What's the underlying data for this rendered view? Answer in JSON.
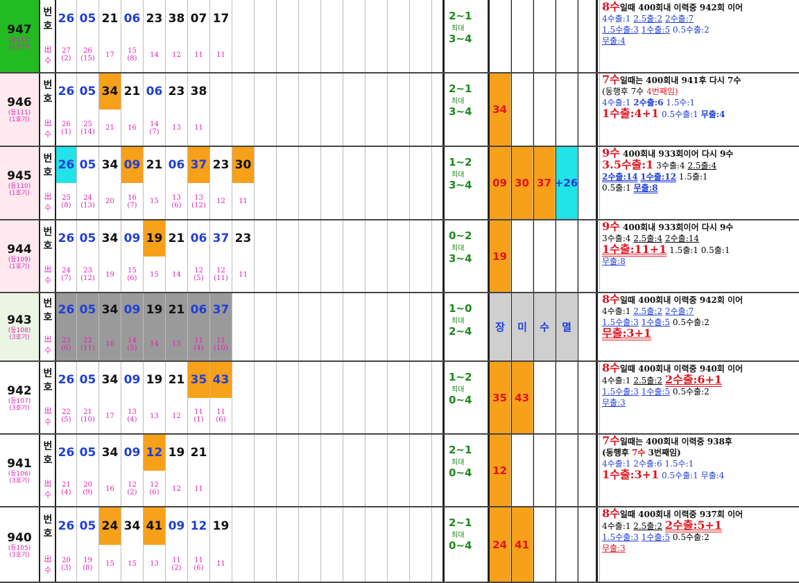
{
  "labels": {
    "num_top": "번",
    "num_bot": "호",
    "cnt_top": "出",
    "cnt_bot": "수",
    "max": "최대"
  },
  "rows": [
    {
      "round": "947",
      "sub1": "(등112)",
      "sub2": "(1호기)",
      "bg": "#22bb22",
      "numbers": [
        {
          "n": "26",
          "c": "blue"
        },
        {
          "n": "05",
          "c": "blue"
        },
        {
          "n": "21",
          "c": ""
        },
        {
          "n": "06",
          "c": "blue"
        },
        {
          "n": "23",
          "c": ""
        },
        {
          "n": "38",
          "c": ""
        },
        {
          "n": "07",
          "c": ""
        },
        {
          "n": "17",
          "c": ""
        }
      ],
      "counts": [
        "27\n(2)",
        "26\n(15)",
        "17",
        "15\n(8)",
        "14",
        "12",
        "11",
        "11"
      ],
      "range1": "2~1",
      "range2": "3~4",
      "extras": [],
      "notes": [
        [
          {
            "t": "8수",
            "cls": "hred"
          },
          {
            "t": "일때 400회내 이력중 942회 이어",
            "cls": "bk"
          }
        ],
        [
          {
            "t": "4수출:1  ",
            "cls": "blue"
          },
          {
            "t": "2.5출:2",
            "cls": "blue u"
          },
          {
            "t": "  "
          },
          {
            "t": "2수출:7",
            "cls": "blue u"
          }
        ],
        [
          {
            "t": "1.5수출:3",
            "cls": "blue u"
          },
          {
            "t": "  "
          },
          {
            "t": "1수출:5",
            "cls": "blue u"
          },
          {
            "t": "  0.5수출:2",
            "cls": "blue"
          }
        ],
        [
          {
            "t": "무출:4",
            "cls": "blue u"
          }
        ]
      ]
    },
    {
      "round": "946",
      "sub1": "(등111)",
      "sub2": "(1호기)",
      "bg": "#fde9ef",
      "numbers": [
        {
          "n": "26",
          "c": "blue"
        },
        {
          "n": "05",
          "c": "blue"
        },
        {
          "n": "34",
          "c": "orange"
        },
        {
          "n": "21",
          "c": ""
        },
        {
          "n": "06",
          "c": "blue"
        },
        {
          "n": "23",
          "c": ""
        },
        {
          "n": "38",
          "c": ""
        }
      ],
      "counts": [
        "26\n(1)",
        "25\n(14)",
        "21",
        "16",
        "14\n(7)",
        "13",
        "11"
      ],
      "range1": "2~1",
      "range2": "3~4",
      "extras": [
        {
          "n": "34"
        }
      ],
      "notes": [
        [
          {
            "t": "7수",
            "cls": "hred"
          },
          {
            "t": "일때는 400회내 941후 다시 7수",
            "cls": "bk"
          }
        ],
        [
          {
            "t": "        (동행후 7수 "
          },
          {
            "t": "4번째임)",
            "cls": "red"
          }
        ],
        [
          {
            "t": "4수출:1  ",
            "cls": "blue"
          },
          {
            "t": "2수출:6",
            "cls": "blue bk"
          },
          {
            "t": "  1.5수:1",
            "cls": "blue"
          }
        ],
        [
          {
            "t": "1수출:4+1",
            "cls": "bigred"
          },
          {
            "t": "  0.5수출:1  ",
            "cls": "blue"
          },
          {
            "t": "무출:4",
            "cls": "blue bk"
          }
        ]
      ]
    },
    {
      "round": "945",
      "sub1": "(등110)",
      "sub2": "(1호기)",
      "bg": "#fde9ef",
      "numbers": [
        {
          "n": "26",
          "c": "blue cyan"
        },
        {
          "n": "05",
          "c": "blue"
        },
        {
          "n": "34",
          "c": ""
        },
        {
          "n": "09",
          "c": "blue orange"
        },
        {
          "n": "21",
          "c": ""
        },
        {
          "n": "06",
          "c": "blue"
        },
        {
          "n": "37",
          "c": "blue orange"
        },
        {
          "n": "23",
          "c": ""
        },
        {
          "n": "30",
          "c": "orange"
        }
      ],
      "counts": [
        "25\n(8)",
        "24\n(13)",
        "20",
        "16\n(7)",
        "15",
        "13\n(6)",
        "13\n(12)",
        "12",
        "11"
      ],
      "range1": "1~2",
      "range2": "3~4",
      "extras": [
        {
          "n": "09"
        },
        {
          "n": "30"
        },
        {
          "n": "37"
        },
        {
          "n": "+26",
          "c": "cyan"
        }
      ],
      "notes": [
        [
          {
            "t": "9수",
            "cls": "hred"
          },
          {
            "t": " 400회내 933회이어 다시 9수",
            "cls": "bk"
          }
        ],
        [
          {
            "t": "3.5수출:1",
            "cls": "bigred"
          },
          {
            "t": "  3수출:4  "
          },
          {
            "t": "2.5출:4",
            "cls": "u"
          }
        ],
        [
          {
            "t": "2수출:14",
            "cls": "blue uu bk"
          },
          {
            "t": "  "
          },
          {
            "t": "1수출:12",
            "cls": "blue uu bk"
          },
          {
            "t": "  1.5출:1"
          }
        ],
        [
          {
            "t": " 0.5출:1  "
          },
          {
            "t": "무출:8",
            "cls": "blue uu bk"
          }
        ]
      ]
    },
    {
      "round": "944",
      "sub1": "(등109)",
      "sub2": "(1호기)",
      "bg": "#fde9ef",
      "numbers": [
        {
          "n": "26",
          "c": "blue"
        },
        {
          "n": "05",
          "c": "blue"
        },
        {
          "n": "34",
          "c": ""
        },
        {
          "n": "09",
          "c": "blue"
        },
        {
          "n": "19",
          "c": "orange"
        },
        {
          "n": "21",
          "c": ""
        },
        {
          "n": "06",
          "c": "blue"
        },
        {
          "n": "37",
          "c": "blue"
        },
        {
          "n": "23",
          "c": ""
        }
      ],
      "counts": [
        "24\n(7)",
        "23\n(12)",
        "19",
        "15\n(6)",
        "15",
        "14",
        "12\n(5)",
        "12\n(11)",
        "11"
      ],
      "range1": "0~2",
      "range2": "3~4",
      "extras": [
        {
          "n": "19"
        }
      ],
      "notes": [
        [
          {
            "t": "9수",
            "cls": "hred"
          },
          {
            "t": " 400회내 933회이어 다시 9수",
            "cls": "bk"
          }
        ],
        [
          {
            "t": "3수출:4  "
          },
          {
            "t": "2.5출:4",
            "cls": "u"
          },
          {
            "t": "  "
          },
          {
            "t": "2수출:14",
            "cls": "u"
          }
        ],
        [
          {
            "t": "1수출:11+1",
            "cls": "bigred uu"
          },
          {
            "t": "  1.5출:1  0.5출:1"
          }
        ],
        [
          {
            "t": "무출:8",
            "cls": "blue u"
          }
        ]
      ]
    },
    {
      "round": "943",
      "sub1": "(등108)",
      "sub2": "(3호기)",
      "bg": "#eaf6e3",
      "numbers": [
        {
          "n": "26",
          "c": "blue gray"
        },
        {
          "n": "05",
          "c": "blue gray"
        },
        {
          "n": "34",
          "c": "gray"
        },
        {
          "n": "09",
          "c": "blue gray"
        },
        {
          "n": "19",
          "c": "gray"
        },
        {
          "n": "21",
          "c": "gray"
        },
        {
          "n": "06",
          "c": "blue gray"
        },
        {
          "n": "37",
          "c": "blue gray"
        }
      ],
      "counts": [
        "23\n(6)",
        "22\n(11)",
        "18",
        "14\n(5)",
        "14",
        "13",
        "11\n(4)",
        "11\n(10)"
      ],
      "range1": "1~0",
      "range2": "2~4",
      "extras": [],
      "memo": [
        "장",
        "미",
        "수",
        "멸"
      ],
      "notes": [
        [
          {
            "t": "8수",
            "cls": "hred"
          },
          {
            "t": "일때 400회내 이력중 942회 이어",
            "cls": "bk"
          }
        ],
        [
          {
            "t": "4수출:1  "
          },
          {
            "t": "2.5출:2",
            "cls": "blue u"
          },
          {
            "t": "  "
          },
          {
            "t": "2수출:7",
            "cls": "blue u"
          }
        ],
        [
          {
            "t": "1.5수출:3",
            "cls": "blue u"
          },
          {
            "t": "  "
          },
          {
            "t": "1수출:5",
            "cls": "blue u"
          },
          {
            "t": "  0.5수출:2"
          }
        ],
        [
          {
            "t": "무출:3+1",
            "cls": "bigred uu"
          }
        ]
      ]
    },
    {
      "round": "942",
      "sub1": "(등107)",
      "sub2": "(3호기)",
      "bg": "#fff",
      "numbers": [
        {
          "n": "26",
          "c": "blue"
        },
        {
          "n": "05",
          "c": "blue"
        },
        {
          "n": "34",
          "c": ""
        },
        {
          "n": "09",
          "c": "blue"
        },
        {
          "n": "19",
          "c": ""
        },
        {
          "n": "21",
          "c": ""
        },
        {
          "n": "35",
          "c": "blue orange"
        },
        {
          "n": "43",
          "c": "blue orange"
        }
      ],
      "counts": [
        "22\n(5)",
        "21\n(10)",
        "17",
        "13\n(4)",
        "13",
        "12",
        "11\n(1)",
        "11\n(6)"
      ],
      "range1": "1~2",
      "range2": "0~4",
      "extras": [
        {
          "n": "35"
        },
        {
          "n": "43"
        }
      ],
      "notes": [
        [
          {
            "t": "8수",
            "cls": "hred"
          },
          {
            "t": "일때 400회내 이력중 940회 이어",
            "cls": "bk"
          }
        ],
        [
          {
            "t": "4수출:1  "
          },
          {
            "t": "2.5출:2",
            "cls": "u"
          },
          {
            "t": "  "
          },
          {
            "t": "2수출:6+1",
            "cls": "bigred uu"
          }
        ],
        [
          {
            "t": "1.5수출:3",
            "cls": "blue u"
          },
          {
            "t": "  "
          },
          {
            "t": "1수출:5",
            "cls": "blue u"
          },
          {
            "t": "  0.5수출:2"
          }
        ],
        [
          {
            "t": "무출:3",
            "cls": "blue u"
          }
        ]
      ]
    },
    {
      "round": "941",
      "sub1": "(등106)",
      "sub2": "(3호기)",
      "bg": "#fff",
      "numbers": [
        {
          "n": "26",
          "c": "blue"
        },
        {
          "n": "05",
          "c": "blue"
        },
        {
          "n": "34",
          "c": ""
        },
        {
          "n": "09",
          "c": "blue"
        },
        {
          "n": "12",
          "c": "blue orange"
        },
        {
          "n": "19",
          "c": ""
        },
        {
          "n": "21",
          "c": ""
        }
      ],
      "counts": [
        "21\n(4)",
        "20\n(9)",
        "16",
        "12\n(2)",
        "12\n(6)",
        "12",
        "11"
      ],
      "range1": "2~1",
      "range2": "0~4",
      "extras": [
        {
          "n": "12"
        }
      ],
      "notes": [
        [
          {
            "t": "7수",
            "cls": "hred"
          },
          {
            "t": "일때는 400회내 이력중 938후",
            "cls": "bk"
          }
        ],
        [
          {
            "t": "        (동행후 ",
            "cls": "bk"
          },
          {
            "t": "7수",
            "cls": "red bk"
          },
          {
            "t": " 3번째임)",
            "cls": "bk"
          }
        ],
        [
          {
            "t": "4수출:1  2수출:6  1.5수:1",
            "cls": "blue"
          }
        ],
        [
          {
            "t": "1수출:3+1",
            "cls": "bigred"
          },
          {
            "t": "  0.5수출:1  무출:4",
            "cls": "blue"
          }
        ]
      ]
    },
    {
      "round": "940",
      "sub1": "(등105)",
      "sub2": "(3호기)",
      "bg": "#fff",
      "numbers": [
        {
          "n": "26",
          "c": "blue"
        },
        {
          "n": "05",
          "c": "blue"
        },
        {
          "n": "24",
          "c": "orange"
        },
        {
          "n": "34",
          "c": ""
        },
        {
          "n": "41",
          "c": "orange"
        },
        {
          "n": "09",
          "c": "blue"
        },
        {
          "n": "12",
          "c": "blue"
        },
        {
          "n": "19",
          "c": ""
        }
      ],
      "counts": [
        "20\n(3)",
        "19\n(8)",
        "15",
        "15",
        "13",
        "11\n(2)",
        "11\n(6)",
        "11"
      ],
      "range1": "2~1",
      "range2": "0~4",
      "extras": [
        {
          "n": "24"
        },
        {
          "n": "41"
        }
      ],
      "notes": [
        [
          {
            "t": "8수",
            "cls": "hred"
          },
          {
            "t": "일때 400회내 이력중 937회 이어",
            "cls": "bk"
          }
        ],
        [
          {
            "t": " 4수출:1  "
          },
          {
            "t": "2.5출:2",
            "cls": "u"
          },
          {
            "t": "  "
          },
          {
            "t": "2수출:5+1",
            "cls": "bigred uu"
          }
        ],
        [
          {
            "t": "1.5수출:3",
            "cls": "blue u"
          },
          {
            "t": "  "
          },
          {
            "t": "1수출:5",
            "cls": "blue u"
          },
          {
            "t": "  0.5수출:2"
          }
        ],
        [
          {
            "t": "무출:3",
            "cls": "red u"
          }
        ]
      ]
    }
  ]
}
